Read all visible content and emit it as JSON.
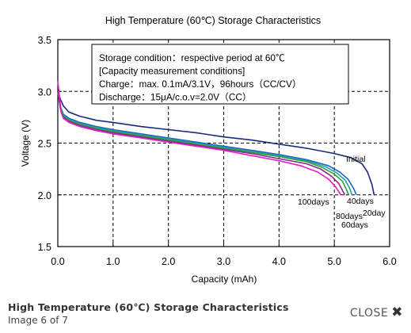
{
  "caption": {
    "title": "High Temperature (60℃) Storage Characteristics",
    "subtitle": "Image 6 of 7",
    "close_label": "CLOSE"
  },
  "chart_data": {
    "type": "line",
    "title": "High Temperature (60℃) Storage Characteristics",
    "xlabel": "Capacity  (mAh)",
    "ylabel": "Voltage  (V)",
    "xlim": [
      0.0,
      6.0
    ],
    "ylim": [
      1.5,
      3.5
    ],
    "xticks": [
      "0.0",
      "1.0",
      "2.0",
      "3.0",
      "4.0",
      "5.0",
      "6.0"
    ],
    "yticks": [
      "1.5",
      "2.0",
      "2.5",
      "3.0",
      "3.5"
    ],
    "grid": true,
    "annotation_box": [
      "Storage condition：respective period at 60℃",
      "[Capacity measurement conditions]",
      "Charge：max. 0.1mA/3.1V，96hours（CC/CV）",
      "Discharge：15μA/c.o.v=2.0V（CC）"
    ],
    "series": [
      {
        "name": "Initial",
        "color": "#1a2a7a",
        "x": [
          0.0,
          0.05,
          0.1,
          0.2,
          0.4,
          0.7,
          1.0,
          1.5,
          2.0,
          2.5,
          3.0,
          3.5,
          4.0,
          4.5,
          5.0,
          5.3,
          5.5,
          5.6,
          5.68,
          5.72
        ],
        "y": [
          3.0,
          2.92,
          2.86,
          2.8,
          2.76,
          2.72,
          2.7,
          2.66,
          2.63,
          2.6,
          2.56,
          2.53,
          2.49,
          2.45,
          2.4,
          2.36,
          2.3,
          2.22,
          2.1,
          2.0
        ]
      },
      {
        "name": "20days",
        "color": "#2060c0",
        "x": [
          0.0,
          0.05,
          0.1,
          0.2,
          0.4,
          0.7,
          1.0,
          1.5,
          2.0,
          2.5,
          3.0,
          3.5,
          4.0,
          4.5,
          4.9,
          5.1,
          5.25,
          5.35,
          5.4
        ],
        "y": [
          3.0,
          2.85,
          2.78,
          2.74,
          2.7,
          2.66,
          2.63,
          2.59,
          2.55,
          2.51,
          2.47,
          2.43,
          2.39,
          2.34,
          2.28,
          2.22,
          2.15,
          2.06,
          2.0
        ]
      },
      {
        "name": "40days",
        "color": "#20a0a0",
        "x": [
          0.0,
          0.05,
          0.1,
          0.2,
          0.4,
          0.7,
          1.0,
          1.5,
          2.0,
          2.5,
          3.0,
          3.5,
          4.0,
          4.5,
          4.85,
          5.05,
          5.2,
          5.28,
          5.32
        ],
        "y": [
          3.0,
          2.84,
          2.77,
          2.73,
          2.69,
          2.65,
          2.62,
          2.58,
          2.54,
          2.5,
          2.46,
          2.42,
          2.38,
          2.33,
          2.27,
          2.21,
          2.14,
          2.06,
          2.0
        ]
      },
      {
        "name": "60days",
        "color": "#30a040",
        "x": [
          0.0,
          0.05,
          0.1,
          0.2,
          0.4,
          0.7,
          1.0,
          1.5,
          2.0,
          2.5,
          3.0,
          3.5,
          4.0,
          4.5,
          4.8,
          5.0,
          5.15,
          5.22,
          5.26
        ],
        "y": [
          3.0,
          2.83,
          2.76,
          2.72,
          2.68,
          2.64,
          2.61,
          2.57,
          2.53,
          2.49,
          2.45,
          2.41,
          2.37,
          2.32,
          2.26,
          2.2,
          2.13,
          2.05,
          2.0
        ]
      },
      {
        "name": "80days",
        "color": "#8a2a8a",
        "x": [
          0.0,
          0.05,
          0.1,
          0.2,
          0.4,
          0.7,
          1.0,
          1.5,
          2.0,
          2.5,
          3.0,
          3.5,
          4.0,
          4.5,
          4.75,
          4.95,
          5.08,
          5.15,
          5.19
        ],
        "y": [
          3.0,
          2.82,
          2.75,
          2.71,
          2.67,
          2.63,
          2.6,
          2.56,
          2.52,
          2.48,
          2.44,
          2.4,
          2.35,
          2.3,
          2.25,
          2.18,
          2.11,
          2.04,
          2.0
        ]
      },
      {
        "name": "100days",
        "color": "#e020c0",
        "x": [
          0.0,
          0.03,
          0.06,
          0.1,
          0.2,
          0.4,
          0.7,
          1.0,
          1.5,
          2.0,
          2.5,
          3.0,
          3.5,
          4.0,
          4.4,
          4.7,
          4.9,
          5.02,
          5.08,
          5.12
        ],
        "y": [
          3.1,
          2.95,
          2.8,
          2.74,
          2.7,
          2.66,
          2.62,
          2.59,
          2.55,
          2.51,
          2.47,
          2.43,
          2.38,
          2.33,
          2.28,
          2.22,
          2.15,
          2.08,
          2.03,
          2.0
        ]
      }
    ],
    "series_labels": [
      "Initial",
      "40days",
      "20day",
      "100days",
      "80days",
      "60days"
    ]
  }
}
